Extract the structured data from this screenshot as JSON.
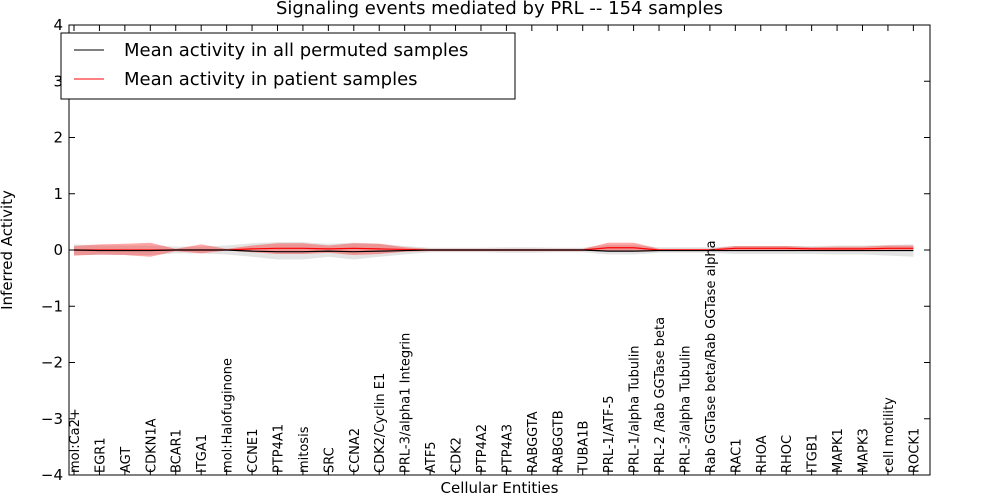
{
  "chart_data": {
    "type": "line",
    "title": "Signaling events mediated by PRL -- 154 samples",
    "xlabel": "Cellular Entities",
    "ylabel": "Inferred Activity",
    "ylim": [
      -4,
      4
    ],
    "yticks": [
      -4,
      -3,
      -2,
      -1,
      0,
      1,
      2,
      3,
      4
    ],
    "ytick_labels": [
      "−4",
      "−3",
      "−2",
      "−1",
      "0",
      "1",
      "2",
      "3",
      "4"
    ],
    "legend_position": "top-left",
    "categories": [
      "mol:Ca2+",
      "EGR1",
      "AGT",
      "CDKN1A",
      "BCAR1",
      "ITGA1",
      "mol:Halofuginone",
      "CCNE1",
      "PTP4A1",
      "mitosis",
      "SRC",
      "CCNA2",
      "CDK2/Cyclin E1",
      "PRL-3/alpha1 Integrin",
      "ATF5",
      "CDK2",
      "PTP4A2",
      "PTP4A3",
      "RABGGTA",
      "RABGGTB",
      "TUBA1B",
      "PRL-1/ATF-5",
      "PRL-1/alpha Tubulin",
      "PRL-2 /Rab GGTase beta",
      "PRL-3/alpha Tubulin",
      "Rab GGTase beta/Rab GGTase alpha",
      "RAC1",
      "RHOA",
      "RHOC",
      "ITGB1",
      "MAPK1",
      "MAPK3",
      "cell motility",
      "ROCK1"
    ],
    "series": [
      {
        "name": "Mean activity in all permuted samples",
        "color": "#000000",
        "values": [
          0.0,
          -0.01,
          -0.01,
          -0.01,
          0.0,
          0.0,
          0.0,
          -0.02,
          -0.03,
          -0.03,
          -0.02,
          -0.03,
          -0.02,
          -0.01,
          0.0,
          0.0,
          0.0,
          0.0,
          0.0,
          0.0,
          0.0,
          -0.02,
          -0.02,
          -0.01,
          -0.01,
          -0.01,
          -0.01,
          -0.01,
          -0.01,
          -0.01,
          -0.01,
          -0.01,
          -0.01,
          -0.01
        ],
        "band_lower": [
          -0.09,
          -0.09,
          -0.09,
          -0.09,
          -0.06,
          -0.06,
          -0.08,
          -0.12,
          -0.17,
          -0.17,
          -0.12,
          -0.17,
          -0.12,
          -0.08,
          -0.04,
          -0.04,
          -0.04,
          -0.05,
          -0.05,
          -0.04,
          -0.04,
          -0.08,
          -0.08,
          -0.05,
          -0.05,
          -0.05,
          -0.07,
          -0.07,
          -0.07,
          -0.07,
          -0.08,
          -0.08,
          -0.1,
          -0.12
        ],
        "band_upper": [
          0.1,
          0.08,
          0.08,
          0.08,
          0.06,
          0.06,
          0.08,
          0.12,
          0.14,
          0.14,
          0.11,
          0.13,
          0.11,
          0.07,
          0.04,
          0.04,
          0.04,
          0.05,
          0.05,
          0.04,
          0.04,
          0.09,
          0.09,
          0.05,
          0.05,
          0.05,
          0.07,
          0.07,
          0.07,
          0.07,
          0.08,
          0.08,
          0.09,
          0.1
        ]
      },
      {
        "name": "Mean activity in patient samples",
        "color": "#ff0000",
        "values": [
          0.0,
          0.0,
          0.0,
          0.0,
          0.0,
          0.0,
          0.0,
          0.02,
          0.03,
          0.03,
          0.02,
          0.03,
          0.02,
          0.01,
          0.0,
          0.0,
          0.0,
          0.0,
          0.0,
          0.0,
          0.0,
          0.04,
          0.04,
          0.0,
          0.0,
          0.0,
          0.03,
          0.03,
          0.03,
          0.02,
          0.02,
          0.02,
          0.03,
          0.03
        ],
        "band_lower": [
          -0.1,
          -0.08,
          -0.09,
          -0.12,
          -0.02,
          -0.06,
          -0.01,
          -0.04,
          -0.07,
          -0.07,
          -0.05,
          -0.09,
          -0.07,
          -0.03,
          -0.02,
          -0.02,
          -0.02,
          -0.02,
          -0.02,
          -0.02,
          -0.02,
          -0.01,
          -0.01,
          -0.01,
          -0.01,
          -0.01,
          0.0,
          0.0,
          0.0,
          0.0,
          0.0,
          0.0,
          0.0,
          0.0
        ],
        "band_upper": [
          0.07,
          0.1,
          0.11,
          0.13,
          0.02,
          0.1,
          0.02,
          0.08,
          0.12,
          0.12,
          0.08,
          0.12,
          0.11,
          0.05,
          0.02,
          0.02,
          0.02,
          0.02,
          0.02,
          0.02,
          0.02,
          0.13,
          0.13,
          0.02,
          0.02,
          0.02,
          0.07,
          0.07,
          0.07,
          0.05,
          0.06,
          0.06,
          0.08,
          0.08
        ]
      }
    ]
  }
}
